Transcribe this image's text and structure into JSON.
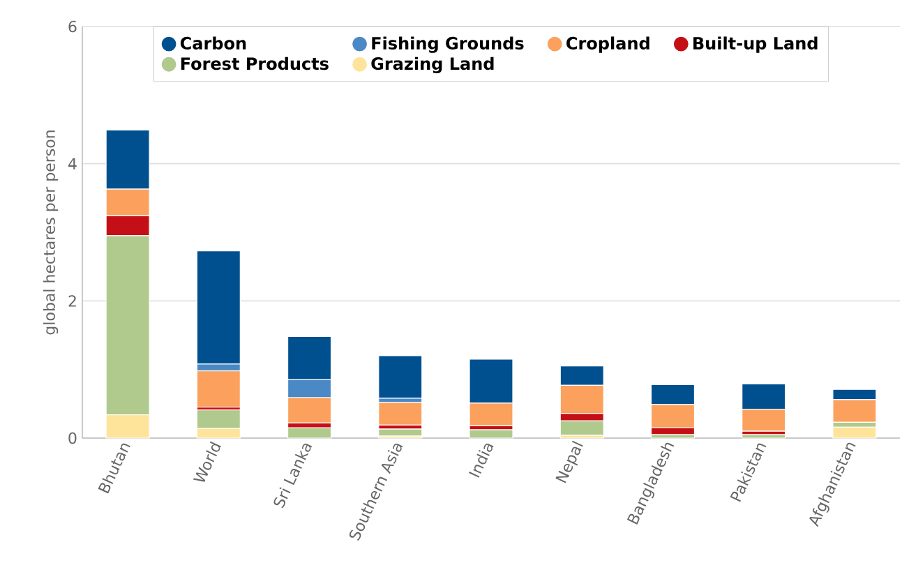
{
  "chart_data": {
    "type": "bar",
    "stacked": true,
    "ylabel": "global hectares per person",
    "categories": [
      "Bhutan",
      "World",
      "Sri Lanka",
      "Southern Asia",
      "India",
      "Nepal",
      "Bangladesh",
      "Pakistan",
      "Afghanistan"
    ],
    "series": [
      {
        "name": "Grazing Land",
        "color": "#fde49a",
        "values": [
          0.34,
          0.14,
          null,
          0.03,
          null,
          0.04,
          null,
          null,
          0.16
        ]
      },
      {
        "name": "Forest Products",
        "color": "#b0c98c",
        "values": [
          2.61,
          0.27,
          0.15,
          0.1,
          0.12,
          0.21,
          0.05,
          0.05,
          0.07
        ]
      },
      {
        "name": "Built-up Land",
        "color": "#c50f16",
        "values": [
          0.29,
          0.04,
          0.07,
          0.06,
          0.06,
          0.11,
          0.1,
          0.05,
          null
        ]
      },
      {
        "name": "Cropland",
        "color": "#fba15d",
        "values": [
          0.39,
          0.53,
          0.37,
          0.33,
          0.33,
          0.41,
          0.34,
          0.32,
          0.33
        ]
      },
      {
        "name": "Fishing Grounds",
        "color": "#4a88c6",
        "values": [
          null,
          0.1,
          0.26,
          0.06,
          null,
          null,
          null,
          null,
          null
        ]
      },
      {
        "name": "Carbon",
        "color": "#00508f",
        "values": [
          0.86,
          1.65,
          0.63,
          0.62,
          0.64,
          0.28,
          0.29,
          0.37,
          0.15
        ]
      }
    ],
    "ylim": [
      0,
      6
    ],
    "yticks": [
      0,
      2,
      4,
      6
    ],
    "grid": "y",
    "legend": "top"
  }
}
